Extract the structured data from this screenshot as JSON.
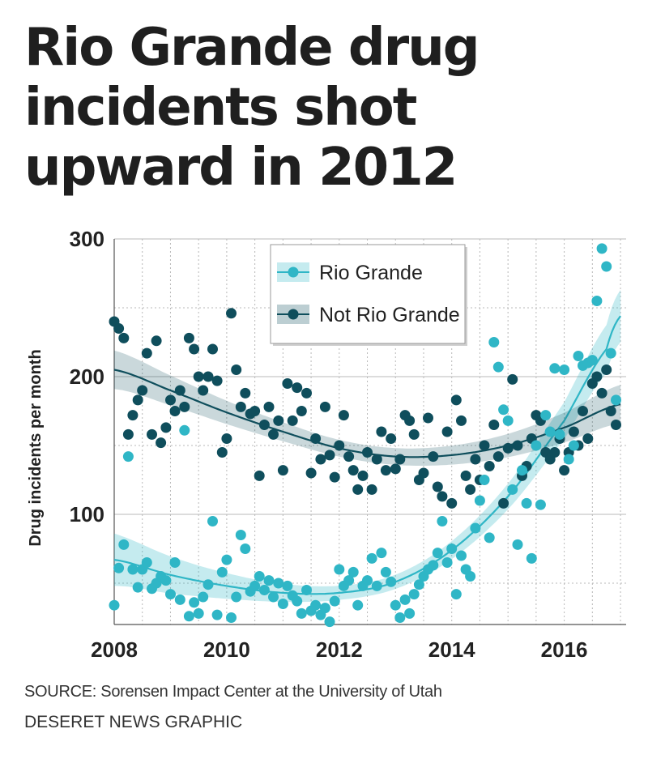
{
  "headline": "Rio Grande drug incidents shot upward in 2012",
  "source": "SOURCE: Sorensen Impact Center at the University of Utah",
  "credit": "DESERET NEWS GRAPHIC",
  "colors": {
    "rio": "#2fb6c6",
    "notRio": "#0f4e5c",
    "grid": "#b8b8b8"
  },
  "chart_data": {
    "type": "scatter",
    "title": "",
    "xlabel": "",
    "ylabel": "Drug incidents per month",
    "xlim": [
      2008,
      2017.1
    ],
    "ylim": [
      20,
      300
    ],
    "xticks": [
      2008,
      2010,
      2012,
      2014,
      2016
    ],
    "yticks": [
      100,
      200,
      300
    ],
    "grid": true,
    "legend_position": "top-center",
    "series": [
      {
        "name": "Rio Grande",
        "color": "#2fb6c6",
        "points": [
          [
            2008.0,
            34
          ],
          [
            2008.08,
            61
          ],
          [
            2008.17,
            78
          ],
          [
            2008.25,
            142
          ],
          [
            2008.33,
            60
          ],
          [
            2008.42,
            47
          ],
          [
            2008.5,
            60
          ],
          [
            2008.58,
            65
          ],
          [
            2008.67,
            46
          ],
          [
            2008.75,
            50
          ],
          [
            2008.83,
            55
          ],
          [
            2008.92,
            52
          ],
          [
            2009.0,
            42
          ],
          [
            2009.08,
            65
          ],
          [
            2009.17,
            38
          ],
          [
            2009.25,
            161
          ],
          [
            2009.33,
            26
          ],
          [
            2009.42,
            36
          ],
          [
            2009.5,
            28
          ],
          [
            2009.58,
            40
          ],
          [
            2009.67,
            49
          ],
          [
            2009.75,
            95
          ],
          [
            2009.83,
            27
          ],
          [
            2009.92,
            58
          ],
          [
            2010.0,
            67
          ],
          [
            2010.08,
            25
          ],
          [
            2010.17,
            40
          ],
          [
            2010.25,
            85
          ],
          [
            2010.33,
            75
          ],
          [
            2010.42,
            44
          ],
          [
            2010.5,
            48
          ],
          [
            2010.58,
            55
          ],
          [
            2010.67,
            45
          ],
          [
            2010.75,
            52
          ],
          [
            2010.83,
            40
          ],
          [
            2010.92,
            50
          ],
          [
            2011.0,
            35
          ],
          [
            2011.08,
            48
          ],
          [
            2011.17,
            41
          ],
          [
            2011.25,
            37
          ],
          [
            2011.33,
            28
          ],
          [
            2011.42,
            45
          ],
          [
            2011.5,
            30
          ],
          [
            2011.58,
            34
          ],
          [
            2011.67,
            27
          ],
          [
            2011.75,
            32
          ],
          [
            2011.83,
            22
          ],
          [
            2011.92,
            37
          ],
          [
            2012.0,
            60
          ],
          [
            2012.08,
            48
          ],
          [
            2012.17,
            52
          ],
          [
            2012.25,
            58
          ],
          [
            2012.33,
            34
          ],
          [
            2012.42,
            48
          ],
          [
            2012.5,
            52
          ],
          [
            2012.58,
            68
          ],
          [
            2012.67,
            48
          ],
          [
            2012.75,
            72
          ],
          [
            2012.83,
            58
          ],
          [
            2012.92,
            51
          ],
          [
            2013.0,
            34
          ],
          [
            2013.08,
            25
          ],
          [
            2013.17,
            38
          ],
          [
            2013.25,
            28
          ],
          [
            2013.33,
            42
          ],
          [
            2013.42,
            49
          ],
          [
            2013.5,
            55
          ],
          [
            2013.58,
            60
          ],
          [
            2013.67,
            63
          ],
          [
            2013.75,
            72
          ],
          [
            2013.83,
            95
          ],
          [
            2013.92,
            65
          ],
          [
            2014.0,
            75
          ],
          [
            2014.08,
            42
          ],
          [
            2014.17,
            70
          ],
          [
            2014.25,
            60
          ],
          [
            2014.33,
            55
          ],
          [
            2014.42,
            90
          ],
          [
            2014.5,
            110
          ],
          [
            2014.58,
            125
          ],
          [
            2014.67,
            83
          ],
          [
            2014.75,
            225
          ],
          [
            2014.83,
            207
          ],
          [
            2014.92,
            176
          ],
          [
            2015.0,
            168
          ],
          [
            2015.08,
            118
          ],
          [
            2015.17,
            78
          ],
          [
            2015.25,
            132
          ],
          [
            2015.33,
            108
          ],
          [
            2015.42,
            68
          ],
          [
            2015.5,
            150
          ],
          [
            2015.58,
            107
          ],
          [
            2015.67,
            172
          ],
          [
            2015.75,
            160
          ],
          [
            2015.83,
            206
          ],
          [
            2015.92,
            158
          ],
          [
            2016.0,
            205
          ],
          [
            2016.08,
            140
          ],
          [
            2016.17,
            150
          ],
          [
            2016.25,
            215
          ],
          [
            2016.33,
            208
          ],
          [
            2016.42,
            210
          ],
          [
            2016.5,
            212
          ],
          [
            2016.58,
            255
          ],
          [
            2016.67,
            293
          ],
          [
            2016.75,
            280
          ],
          [
            2016.83,
            217
          ],
          [
            2016.92,
            183
          ]
        ],
        "trend": [
          [
            2008.0,
            67
          ],
          [
            2009.0,
            56
          ],
          [
            2010.0,
            48
          ],
          [
            2011.0,
            43
          ],
          [
            2012.0,
            43
          ],
          [
            2013.0,
            51
          ],
          [
            2014.0,
            74
          ],
          [
            2015.0,
            113
          ],
          [
            2016.0,
            168
          ],
          [
            2016.75,
            220
          ],
          [
            2017.0,
            244
          ]
        ]
      },
      {
        "name": "Not Rio Grande",
        "color": "#0f4e5c",
        "points": [
          [
            2008.0,
            240
          ],
          [
            2008.08,
            235
          ],
          [
            2008.17,
            228
          ],
          [
            2008.25,
            158
          ],
          [
            2008.33,
            172
          ],
          [
            2008.42,
            183
          ],
          [
            2008.5,
            190
          ],
          [
            2008.58,
            217
          ],
          [
            2008.67,
            158
          ],
          [
            2008.75,
            226
          ],
          [
            2008.83,
            152
          ],
          [
            2008.92,
            163
          ],
          [
            2009.0,
            183
          ],
          [
            2009.08,
            175
          ],
          [
            2009.17,
            190
          ],
          [
            2009.25,
            178
          ],
          [
            2009.33,
            228
          ],
          [
            2009.42,
            220
          ],
          [
            2009.5,
            200
          ],
          [
            2009.58,
            190
          ],
          [
            2009.67,
            200
          ],
          [
            2009.75,
            220
          ],
          [
            2009.83,
            197
          ],
          [
            2009.92,
            145
          ],
          [
            2010.0,
            155
          ],
          [
            2010.08,
            246
          ],
          [
            2010.17,
            205
          ],
          [
            2010.25,
            178
          ],
          [
            2010.33,
            188
          ],
          [
            2010.42,
            173
          ],
          [
            2010.5,
            175
          ],
          [
            2010.58,
            128
          ],
          [
            2010.67,
            165
          ],
          [
            2010.75,
            178
          ],
          [
            2010.83,
            158
          ],
          [
            2010.92,
            168
          ],
          [
            2011.0,
            132
          ],
          [
            2011.08,
            195
          ],
          [
            2011.17,
            168
          ],
          [
            2011.25,
            192
          ],
          [
            2011.33,
            175
          ],
          [
            2011.42,
            188
          ],
          [
            2011.5,
            130
          ],
          [
            2011.58,
            155
          ],
          [
            2011.67,
            140
          ],
          [
            2011.75,
            178
          ],
          [
            2011.83,
            143
          ],
          [
            2011.92,
            127
          ],
          [
            2012.0,
            150
          ],
          [
            2012.08,
            172
          ],
          [
            2012.17,
            142
          ],
          [
            2012.25,
            132
          ],
          [
            2012.33,
            118
          ],
          [
            2012.42,
            128
          ],
          [
            2012.5,
            145
          ],
          [
            2012.58,
            118
          ],
          [
            2012.67,
            140
          ],
          [
            2012.75,
            160
          ],
          [
            2012.83,
            132
          ],
          [
            2012.92,
            155
          ],
          [
            2013.0,
            133
          ],
          [
            2013.08,
            140
          ],
          [
            2013.17,
            172
          ],
          [
            2013.25,
            168
          ],
          [
            2013.33,
            158
          ],
          [
            2013.42,
            125
          ],
          [
            2013.5,
            130
          ],
          [
            2013.58,
            170
          ],
          [
            2013.67,
            142
          ],
          [
            2013.75,
            120
          ],
          [
            2013.83,
            113
          ],
          [
            2013.92,
            160
          ],
          [
            2014.0,
            108
          ],
          [
            2014.08,
            183
          ],
          [
            2014.17,
            168
          ],
          [
            2014.25,
            128
          ],
          [
            2014.33,
            118
          ],
          [
            2014.42,
            140
          ],
          [
            2014.5,
            125
          ],
          [
            2014.58,
            150
          ],
          [
            2014.67,
            135
          ],
          [
            2014.75,
            165
          ],
          [
            2014.83,
            142
          ],
          [
            2014.92,
            108
          ],
          [
            2015.0,
            148
          ],
          [
            2015.08,
            198
          ],
          [
            2015.17,
            150
          ],
          [
            2015.25,
            128
          ],
          [
            2015.33,
            135
          ],
          [
            2015.42,
            155
          ],
          [
            2015.5,
            172
          ],
          [
            2015.58,
            168
          ],
          [
            2015.67,
            145
          ],
          [
            2015.75,
            140
          ],
          [
            2015.83,
            145
          ],
          [
            2015.92,
            155
          ],
          [
            2016.0,
            132
          ],
          [
            2016.08,
            145
          ],
          [
            2016.17,
            160
          ],
          [
            2016.25,
            150
          ],
          [
            2016.33,
            175
          ],
          [
            2016.42,
            155
          ],
          [
            2016.5,
            195
          ],
          [
            2016.58,
            200
          ],
          [
            2016.67,
            188
          ],
          [
            2016.75,
            205
          ],
          [
            2016.83,
            175
          ],
          [
            2016.92,
            165
          ]
        ],
        "trend": [
          [
            2008.0,
            205
          ],
          [
            2009.0,
            190
          ],
          [
            2010.0,
            174
          ],
          [
            2011.0,
            160
          ],
          [
            2012.0,
            148
          ],
          [
            2013.0,
            142
          ],
          [
            2014.0,
            143
          ],
          [
            2015.0,
            150
          ],
          [
            2016.0,
            163
          ],
          [
            2017.0,
            180
          ]
        ]
      }
    ]
  }
}
